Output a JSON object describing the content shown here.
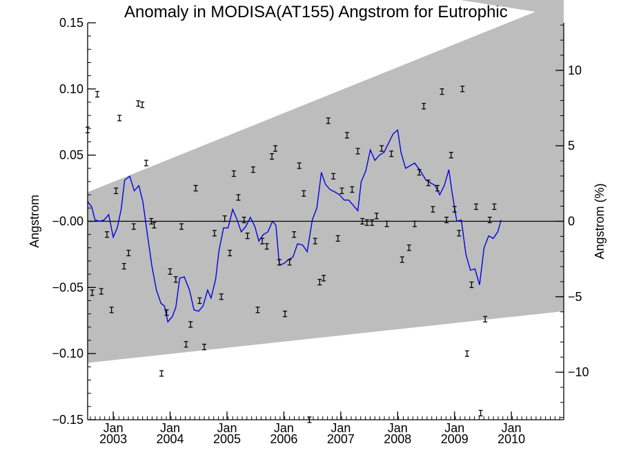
{
  "chart_data": {
    "type": "line",
    "title": "Anomaly in MODISA(AT155) Angstrom for Eutrophic",
    "ylabel": "Angstrom",
    "ylabel_right": "Angstrom (%)",
    "ylim": [
      -0.15,
      0.15
    ],
    "ylim_right": [
      -13.15,
      13.15
    ],
    "xlim": [
      2002.55,
      2010.92
    ],
    "y_ticks": [
      {
        "v": -0.15,
        "label": "−0.15"
      },
      {
        "v": -0.1,
        "label": "−0.10"
      },
      {
        "v": -0.05,
        "label": "−0.05"
      },
      {
        "v": 0.0,
        "label": "−0.00"
      },
      {
        "v": 0.05,
        "label": "0.05"
      },
      {
        "v": 0.1,
        "label": "0.10"
      },
      {
        "v": 0.15,
        "label": "0.15"
      }
    ],
    "y_ticks_right": [
      {
        "v": -10,
        "label": "−10"
      },
      {
        "v": -5,
        "label": "−5"
      },
      {
        "v": 0,
        "label": "0"
      },
      {
        "v": 5,
        "label": "5"
      },
      {
        "v": 10,
        "label": "10"
      }
    ],
    "x_ticks": [
      {
        "v": 2003.0,
        "month": "Jan",
        "year": "2003"
      },
      {
        "v": 2004.0,
        "month": "Jan",
        "year": "2004"
      },
      {
        "v": 2005.0,
        "month": "Jan",
        "year": "2005"
      },
      {
        "v": 2006.0,
        "month": "Jan",
        "year": "2006"
      },
      {
        "v": 2007.0,
        "month": "Jan",
        "year": "2007"
      },
      {
        "v": 2008.0,
        "month": "Jan",
        "year": "2008"
      },
      {
        "v": 2009.0,
        "month": "Jan",
        "year": "2009"
      },
      {
        "v": 2010.0,
        "month": "Jan",
        "year": "2010"
      }
    ],
    "band": {
      "lower": [
        [
          2002.55,
          -0.107
        ],
        [
          2010.92,
          -0.068
        ]
      ],
      "upper": [
        [
          2002.55,
          0.022
        ],
        [
          2010.92,
          0.167
        ]
      ]
    },
    "zero_line": 0,
    "smoothed_series": {
      "color": "#0000dd",
      "points": [
        [
          2002.55,
          0.015
        ],
        [
          2002.62,
          0.011
        ],
        [
          2002.68,
          0.001
        ],
        [
          2002.76,
          0.0
        ],
        [
          2002.84,
          0.001
        ],
        [
          2002.92,
          0.005
        ],
        [
          2003.0,
          -0.012
        ],
        [
          2003.07,
          -0.005
        ],
        [
          2003.14,
          0.009
        ],
        [
          2003.2,
          0.031
        ],
        [
          2003.29,
          0.034
        ],
        [
          2003.37,
          0.023
        ],
        [
          2003.45,
          0.027
        ],
        [
          2003.52,
          0.015
        ],
        [
          2003.6,
          -0.01
        ],
        [
          2003.68,
          -0.034
        ],
        [
          2003.76,
          -0.052
        ],
        [
          2003.84,
          -0.062
        ],
        [
          2003.9,
          -0.064
        ],
        [
          2003.96,
          -0.076
        ],
        [
          2004.04,
          -0.072
        ],
        [
          2004.1,
          -0.065
        ],
        [
          2004.17,
          -0.043
        ],
        [
          2004.25,
          -0.042
        ],
        [
          2004.34,
          -0.052
        ],
        [
          2004.42,
          -0.067
        ],
        [
          2004.5,
          -0.068
        ],
        [
          2004.58,
          -0.064
        ],
        [
          2004.66,
          -0.052
        ],
        [
          2004.72,
          -0.058
        ],
        [
          2004.8,
          -0.044
        ],
        [
          2004.86,
          -0.022
        ],
        [
          2004.94,
          -0.005
        ],
        [
          2005.02,
          -0.005
        ],
        [
          2005.1,
          0.009
        ],
        [
          2005.17,
          0.002
        ],
        [
          2005.25,
          -0.008
        ],
        [
          2005.33,
          -0.004
        ],
        [
          2005.41,
          0.003
        ],
        [
          2005.49,
          -0.004
        ],
        [
          2005.56,
          -0.015
        ],
        [
          2005.64,
          -0.01
        ],
        [
          2005.72,
          -0.008
        ],
        [
          2005.8,
          0.0
        ],
        [
          2005.86,
          -0.003
        ],
        [
          2005.92,
          -0.033
        ],
        [
          2006.0,
          -0.032
        ],
        [
          2006.08,
          -0.029
        ],
        [
          2006.16,
          -0.027
        ],
        [
          2006.24,
          -0.017
        ],
        [
          2006.33,
          -0.018
        ],
        [
          2006.41,
          -0.023
        ],
        [
          2006.5,
          0.001
        ],
        [
          2006.58,
          0.01
        ],
        [
          2006.66,
          0.037
        ],
        [
          2006.73,
          0.028
        ],
        [
          2006.81,
          0.024
        ],
        [
          2006.9,
          0.022
        ],
        [
          2006.98,
          0.02
        ],
        [
          2007.06,
          0.016
        ],
        [
          2007.14,
          0.016
        ],
        [
          2007.22,
          0.012
        ],
        [
          2007.3,
          0.008
        ],
        [
          2007.36,
          0.03
        ],
        [
          2007.44,
          0.038
        ],
        [
          2007.52,
          0.054
        ],
        [
          2007.6,
          0.046
        ],
        [
          2007.68,
          0.05
        ],
        [
          2007.76,
          0.052
        ],
        [
          2007.84,
          0.059
        ],
        [
          2007.92,
          0.066
        ],
        [
          2008.0,
          0.069
        ],
        [
          2008.06,
          0.052
        ],
        [
          2008.14,
          0.04
        ],
        [
          2008.22,
          0.042
        ],
        [
          2008.3,
          0.044
        ],
        [
          2008.4,
          0.038
        ],
        [
          2008.5,
          0.031
        ],
        [
          2008.58,
          0.029
        ],
        [
          2008.66,
          0.027
        ],
        [
          2008.74,
          0.02
        ],
        [
          2008.82,
          0.027
        ],
        [
          2008.9,
          0.039
        ],
        [
          2008.96,
          0.021
        ],
        [
          2009.04,
          0.0
        ],
        [
          2009.12,
          0.001
        ],
        [
          2009.2,
          -0.025
        ],
        [
          2009.28,
          -0.037
        ],
        [
          2009.36,
          -0.036
        ],
        [
          2009.44,
          -0.048
        ],
        [
          2009.52,
          -0.02
        ],
        [
          2009.6,
          -0.011
        ],
        [
          2009.68,
          -0.013
        ],
        [
          2009.76,
          -0.008
        ],
        [
          2009.82,
          0.001
        ]
      ]
    },
    "monthly_points": [
      [
        2002.55,
        0.069
      ],
      [
        2002.63,
        -0.054
      ],
      [
        2002.72,
        0.096
      ],
      [
        2002.79,
        -0.053
      ],
      [
        2002.89,
        -0.01
      ],
      [
        2002.97,
        -0.067
      ],
      [
        2003.05,
        0.023
      ],
      [
        2003.11,
        0.078
      ],
      [
        2003.19,
        -0.034
      ],
      [
        2003.27,
        -0.024
      ],
      [
        2003.36,
        -0.004
      ],
      [
        2003.44,
        0.089
      ],
      [
        2003.51,
        0.088
      ],
      [
        2003.58,
        0.044
      ],
      [
        2003.67,
        0.0
      ],
      [
        2003.72,
        -0.003
      ],
      [
        2003.85,
        -0.115
      ],
      [
        2003.94,
        -0.069
      ],
      [
        2004.0,
        -0.038
      ],
      [
        2004.1,
        -0.044
      ],
      [
        2004.2,
        -0.004
      ],
      [
        2004.28,
        -0.093
      ],
      [
        2004.36,
        -0.078
      ],
      [
        2004.45,
        0.025
      ],
      [
        2004.52,
        -0.06
      ],
      [
        2004.6,
        -0.095
      ],
      [
        2004.78,
        -0.009
      ],
      [
        2004.9,
        -0.057
      ],
      [
        2004.96,
        0.002
      ],
      [
        2005.05,
        -0.024
      ],
      [
        2005.12,
        0.036
      ],
      [
        2005.2,
        0.018
      ],
      [
        2005.3,
        0.001
      ],
      [
        2005.36,
        -0.011
      ],
      [
        2005.46,
        0.039
      ],
      [
        2005.54,
        -0.067
      ],
      [
        2005.62,
        -0.015
      ],
      [
        2005.7,
        -0.019
      ],
      [
        2005.79,
        0.049
      ],
      [
        2005.85,
        0.055
      ],
      [
        2005.92,
        -0.031
      ],
      [
        2006.02,
        -0.07
      ],
      [
        2006.1,
        -0.031
      ],
      [
        2006.18,
        -0.01
      ],
      [
        2006.27,
        0.042
      ],
      [
        2006.35,
        0.021
      ],
      [
        2006.45,
        -0.15
      ],
      [
        2006.55,
        -0.015
      ],
      [
        2006.63,
        -0.046
      ],
      [
        2006.7,
        -0.043
      ],
      [
        2006.78,
        0.076
      ],
      [
        2006.87,
        0.034
      ],
      [
        2006.95,
        -0.013
      ],
      [
        2007.02,
        0.023
      ],
      [
        2007.11,
        0.065
      ],
      [
        2007.2,
        0.024
      ],
      [
        2007.3,
        0.053
      ],
      [
        2007.38,
        0.0
      ],
      [
        2007.46,
        -0.001
      ],
      [
        2007.55,
        -0.001
      ],
      [
        2007.63,
        0.004
      ],
      [
        2007.72,
        0.055
      ],
      [
        2007.81,
        -0.002
      ],
      [
        2007.89,
        0.051
      ],
      [
        2008.08,
        -0.029
      ],
      [
        2008.2,
        -0.02
      ],
      [
        2008.3,
        -0.002
      ],
      [
        2008.38,
        0.037
      ],
      [
        2008.46,
        0.087
      ],
      [
        2008.54,
        0.029
      ],
      [
        2008.62,
        0.009
      ],
      [
        2008.7,
        0.025
      ],
      [
        2008.78,
        0.098
      ],
      [
        2008.86,
        0.001
      ],
      [
        2008.94,
        0.05
      ],
      [
        2009.0,
        0.009
      ],
      [
        2009.08,
        -0.009
      ],
      [
        2009.14,
        0.1
      ],
      [
        2009.22,
        -0.1
      ],
      [
        2009.3,
        -0.048
      ],
      [
        2009.38,
        0.011
      ],
      [
        2009.46,
        -0.145
      ],
      [
        2009.54,
        -0.074
      ],
      [
        2009.62,
        0.001
      ],
      [
        2009.7,
        0.011
      ]
    ],
    "legend": "none",
    "grid": false
  }
}
